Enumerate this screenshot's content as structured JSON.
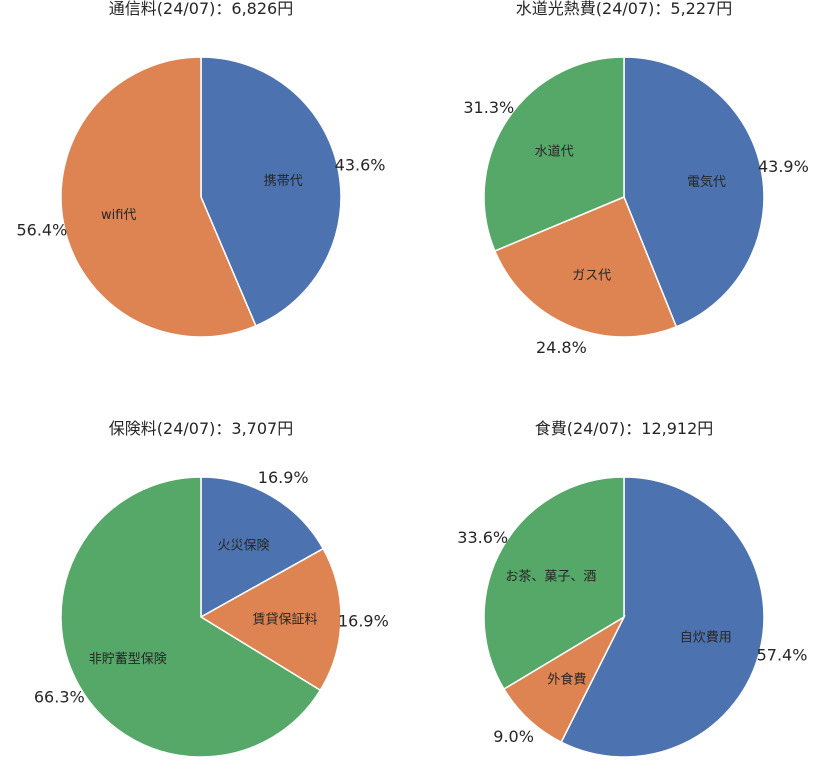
{
  "colors": {
    "blue": "#4c72b0",
    "orange": "#dd8452",
    "green": "#55a868"
  },
  "chart_data": [
    {
      "type": "pie",
      "title": "通信料(24/07)：6,826円",
      "slices": [
        {
          "label": "携帯代",
          "pct_label": "43.6%",
          "value": 43.6,
          "color": "#4c72b0"
        },
        {
          "label": "wifi代",
          "pct_label": "56.4%",
          "value": 56.4,
          "color": "#dd8452"
        }
      ]
    },
    {
      "type": "pie",
      "title": "水道光熱費(24/07)：5,227円",
      "slices": [
        {
          "label": "電気代",
          "pct_label": "43.9%",
          "value": 43.9,
          "color": "#4c72b0"
        },
        {
          "label": "ガス代",
          "pct_label": "24.8%",
          "value": 24.8,
          "color": "#dd8452"
        },
        {
          "label": "水道代",
          "pct_label": "31.3%",
          "value": 31.3,
          "color": "#55a868"
        }
      ]
    },
    {
      "type": "pie",
      "title": "保険料(24/07)：3,707円",
      "slices": [
        {
          "label": "火災保険",
          "pct_label": "16.9%",
          "value": 16.9,
          "color": "#4c72b0"
        },
        {
          "label": "賃貸保証料",
          "pct_label": "16.9%",
          "value": 16.9,
          "color": "#dd8452"
        },
        {
          "label": "非貯蓄型保険",
          "pct_label": "66.3%",
          "value": 66.3,
          "color": "#55a868"
        }
      ]
    },
    {
      "type": "pie",
      "title": "食費(24/07)：12,912円",
      "slices": [
        {
          "label": "自炊費用",
          "pct_label": "57.4%",
          "value": 57.4,
          "color": "#4c72b0"
        },
        {
          "label": "外食費",
          "pct_label": "9.0%",
          "value": 9.0,
          "color": "#dd8452"
        },
        {
          "label": "お茶、菓子、酒",
          "pct_label": "33.6%",
          "value": 33.6,
          "color": "#55a868"
        }
      ]
    }
  ]
}
